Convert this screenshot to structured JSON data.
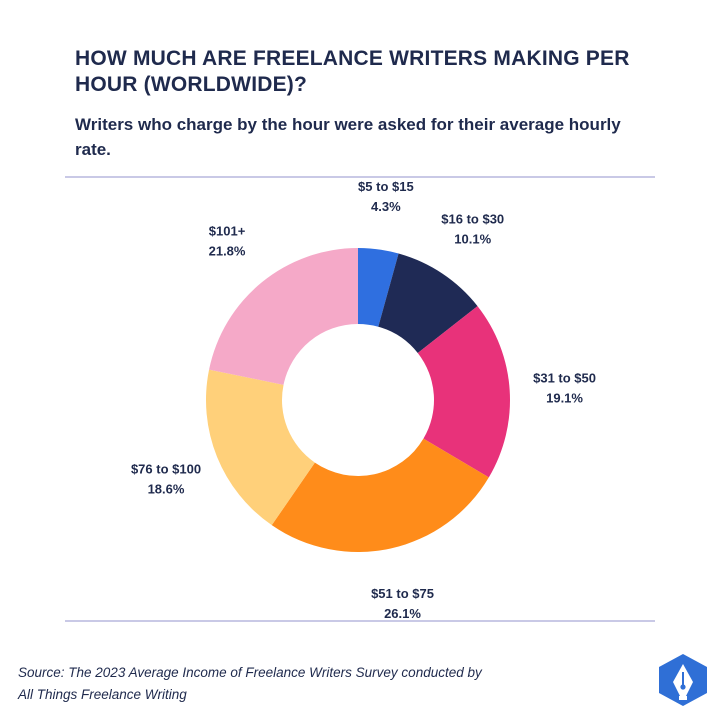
{
  "header": {
    "title": "HOW MUCH ARE FREELANCE WRITERS MAKING PER HOUR (WORLDWIDE)?",
    "subtitle": "Writers who charge by the hour were asked for their average hourly rate."
  },
  "footer": {
    "source_line1": "Source: The 2023 Average Income of Freelance Writers Survey conducted by",
    "source_line2": "All Things Freelance Writing"
  },
  "logo": {
    "icon": "pen-nib-icon",
    "color": "#2f6fd6"
  },
  "chart_data": {
    "type": "pie",
    "title": "HOW MUCH ARE FREELANCE WRITERS MAKING PER HOUR (WORLDWIDE)?",
    "subtitle": "Writers who charge by the hour were asked for their average hourly rate.",
    "donut": true,
    "categories": [
      "$5 to $15",
      "$16 to $30",
      "$31 to $50",
      "$51 to $75",
      "$76 to $100",
      "$101+"
    ],
    "values": [
      4.3,
      10.1,
      19.1,
      26.1,
      18.6,
      21.8
    ],
    "value_labels": [
      "4.3%",
      "10.1%",
      "19.1%",
      "26.1%",
      "18.6%",
      "21.8%"
    ],
    "colors": [
      "#2f6fe0",
      "#1f2a55",
      "#e8327a",
      "#ff8c1a",
      "#ffd07a",
      "#f5a9c8"
    ],
    "start": "12 o'clock, clockwise",
    "legend": "none (direct labels)"
  }
}
